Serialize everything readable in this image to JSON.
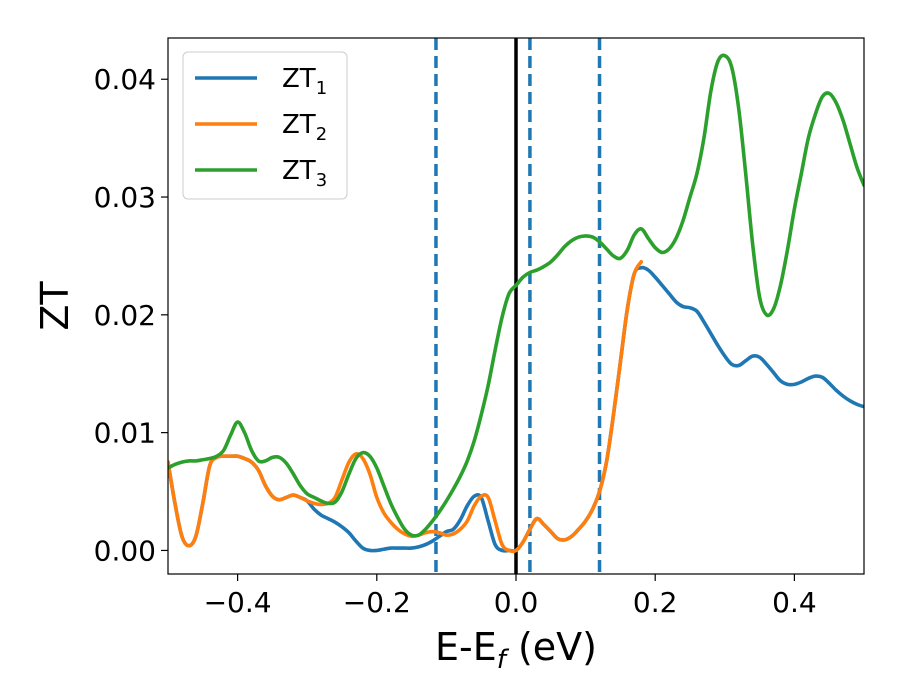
{
  "chart_data": {
    "type": "line",
    "xlabel_main": "E-E",
    "xlabel_sub": "f",
    "xlabel_unit": " (eV)",
    "ylabel": "ZT",
    "xlim": [
      -0.5,
      0.5
    ],
    "ylim": [
      -0.002,
      0.0435
    ],
    "xticks": [
      -0.4,
      -0.2,
      0.0,
      0.2,
      0.4
    ],
    "xtick_labels": [
      "−0.4",
      "−0.2",
      "0.0",
      "0.2",
      "0.4"
    ],
    "yticks": [
      0.0,
      0.01,
      0.02,
      0.03,
      0.04
    ],
    "ytick_labels": [
      "0.00",
      "0.01",
      "0.02",
      "0.03",
      "0.04"
    ],
    "grid": false,
    "legend_position": "top-left",
    "vertical_lines": [
      {
        "x": 0.0,
        "style": "solid",
        "color": "#000000"
      },
      {
        "x": -0.115,
        "style": "dashed",
        "color": "#1f77b4"
      },
      {
        "x": 0.02,
        "style": "dashed",
        "color": "#1f77b4"
      },
      {
        "x": 0.12,
        "style": "dashed",
        "color": "#1f77b4"
      }
    ],
    "series": [
      {
        "name": "ZT",
        "subscript": "1",
        "color": "#1f77b4",
        "x": [
          -0.5,
          -0.49,
          -0.48,
          -0.47,
          -0.46,
          -0.45,
          -0.44,
          -0.43,
          -0.42,
          -0.41,
          -0.4,
          -0.39,
          -0.38,
          -0.37,
          -0.36,
          -0.35,
          -0.34,
          -0.33,
          -0.32,
          -0.31,
          -0.3,
          -0.29,
          -0.28,
          -0.27,
          -0.26,
          -0.25,
          -0.24,
          -0.23,
          -0.22,
          -0.21,
          -0.2,
          -0.19,
          -0.18,
          -0.17,
          -0.16,
          -0.15,
          -0.14,
          -0.13,
          -0.12,
          -0.11,
          -0.1,
          -0.09,
          -0.08,
          -0.07,
          -0.06,
          -0.05,
          -0.04,
          -0.03,
          -0.02,
          -0.01,
          0.0,
          0.01,
          0.02,
          0.03,
          0.04,
          0.05,
          0.06,
          0.07,
          0.08,
          0.09,
          0.1,
          0.11,
          0.12,
          0.13,
          0.14,
          0.15,
          0.16,
          0.17,
          0.18,
          0.19,
          0.2,
          0.21,
          0.22,
          0.23,
          0.24,
          0.25,
          0.26,
          0.27,
          0.28,
          0.29,
          0.3,
          0.31,
          0.32,
          0.33,
          0.34,
          0.35,
          0.36,
          0.37,
          0.38,
          0.39,
          0.4,
          0.41,
          0.42,
          0.43,
          0.44,
          0.45,
          0.46,
          0.47,
          0.48,
          0.49,
          0.5
        ],
        "y": [
          0.0075,
          0.004,
          0.0012,
          0.0004,
          0.0012,
          0.004,
          0.0072,
          0.0079,
          0.008,
          0.008,
          0.008,
          0.0078,
          0.0075,
          0.0068,
          0.0055,
          0.0046,
          0.0043,
          0.0045,
          0.0047,
          0.0045,
          0.0042,
          0.0035,
          0.003,
          0.0027,
          0.0024,
          0.002,
          0.0015,
          0.0008,
          0.0002,
          0.0,
          0.0,
          0.0001,
          0.0002,
          0.0002,
          0.0002,
          0.0002,
          0.0003,
          0.0005,
          0.0008,
          0.0012,
          0.0016,
          0.0018,
          0.0026,
          0.0038,
          0.0046,
          0.0045,
          0.0025,
          0.0005,
          0.0,
          0.0,
          0.0,
          0.0007,
          0.0018,
          0.0027,
          0.0022,
          0.0016,
          0.001,
          0.0009,
          0.0012,
          0.0018,
          0.0025,
          0.0035,
          0.005,
          0.0075,
          0.0115,
          0.016,
          0.0205,
          0.0235,
          0.024,
          0.0238,
          0.0232,
          0.0225,
          0.0218,
          0.0211,
          0.0207,
          0.0206,
          0.0203,
          0.0194,
          0.0184,
          0.0174,
          0.0165,
          0.0158,
          0.0157,
          0.0161,
          0.0165,
          0.0164,
          0.0158,
          0.0151,
          0.0144,
          0.0141,
          0.0141,
          0.0143,
          0.0146,
          0.0148,
          0.0147,
          0.0142,
          0.0136,
          0.0131,
          0.0127,
          0.0124,
          0.0122
        ]
      },
      {
        "name": "ZT",
        "subscript": "2",
        "color": "#ff7f0e",
        "x": [
          -0.5,
          -0.49,
          -0.48,
          -0.47,
          -0.46,
          -0.45,
          -0.44,
          -0.43,
          -0.42,
          -0.41,
          -0.4,
          -0.39,
          -0.38,
          -0.37,
          -0.36,
          -0.35,
          -0.34,
          -0.33,
          -0.32,
          -0.31,
          -0.3,
          -0.29,
          -0.28,
          -0.27,
          -0.26,
          -0.25,
          -0.24,
          -0.23,
          -0.22,
          -0.21,
          -0.2,
          -0.19,
          -0.18,
          -0.17,
          -0.16,
          -0.15,
          -0.14,
          -0.13,
          -0.12,
          -0.11,
          -0.1,
          -0.09,
          -0.08,
          -0.07,
          -0.06,
          -0.05,
          -0.04,
          -0.03,
          -0.02,
          -0.01,
          0.0,
          0.01,
          0.02,
          0.03,
          0.04,
          0.05,
          0.06,
          0.07,
          0.08,
          0.09,
          0.1,
          0.11,
          0.12,
          0.13,
          0.14,
          0.15,
          0.16,
          0.17,
          0.18
        ],
        "y": [
          0.0075,
          0.004,
          0.0012,
          0.0004,
          0.0012,
          0.004,
          0.0072,
          0.0079,
          0.008,
          0.008,
          0.008,
          0.0078,
          0.0075,
          0.0068,
          0.0055,
          0.0046,
          0.0043,
          0.0045,
          0.0047,
          0.0045,
          0.0042,
          0.004,
          0.0039,
          0.004,
          0.0045,
          0.006,
          0.0075,
          0.0082,
          0.0078,
          0.0065,
          0.0045,
          0.0032,
          0.0024,
          0.0018,
          0.0014,
          0.0012,
          0.0013,
          0.0015,
          0.0016,
          0.0015,
          0.0013,
          0.0014,
          0.0018,
          0.0025,
          0.0038,
          0.0046,
          0.0045,
          0.0025,
          0.0005,
          0.0,
          0.0,
          0.0007,
          0.0018,
          0.0027,
          0.0022,
          0.0016,
          0.001,
          0.0009,
          0.0012,
          0.0018,
          0.0025,
          0.0035,
          0.005,
          0.0075,
          0.0115,
          0.016,
          0.0205,
          0.0235,
          0.0245
        ]
      },
      {
        "name": "ZT",
        "subscript": "3",
        "color": "#2ca02c",
        "x": [
          -0.5,
          -0.49,
          -0.48,
          -0.47,
          -0.46,
          -0.45,
          -0.44,
          -0.43,
          -0.42,
          -0.41,
          -0.4,
          -0.39,
          -0.38,
          -0.37,
          -0.36,
          -0.35,
          -0.34,
          -0.33,
          -0.32,
          -0.31,
          -0.3,
          -0.29,
          -0.28,
          -0.27,
          -0.26,
          -0.25,
          -0.24,
          -0.23,
          -0.22,
          -0.21,
          -0.2,
          -0.19,
          -0.18,
          -0.17,
          -0.16,
          -0.15,
          -0.14,
          -0.13,
          -0.12,
          -0.11,
          -0.1,
          -0.09,
          -0.08,
          -0.07,
          -0.06,
          -0.05,
          -0.04,
          -0.03,
          -0.02,
          -0.01,
          0.0,
          0.01,
          0.02,
          0.03,
          0.04,
          0.05,
          0.06,
          0.07,
          0.08,
          0.09,
          0.1,
          0.11,
          0.12,
          0.13,
          0.14,
          0.15,
          0.16,
          0.17,
          0.18,
          0.19,
          0.2,
          0.21,
          0.22,
          0.23,
          0.24,
          0.25,
          0.26,
          0.27,
          0.28,
          0.29,
          0.3,
          0.31,
          0.32,
          0.33,
          0.34,
          0.35,
          0.36,
          0.37,
          0.38,
          0.39,
          0.4,
          0.41,
          0.42,
          0.43,
          0.44,
          0.45,
          0.46,
          0.47,
          0.48,
          0.49,
          0.5
        ],
        "y": [
          0.007,
          0.0073,
          0.0075,
          0.0076,
          0.0076,
          0.0077,
          0.0078,
          0.008,
          0.0085,
          0.0098,
          0.0109,
          0.01,
          0.0085,
          0.0076,
          0.0076,
          0.0079,
          0.0079,
          0.0074,
          0.0065,
          0.0055,
          0.0048,
          0.0045,
          0.0042,
          0.004,
          0.0041,
          0.005,
          0.0065,
          0.0078,
          0.0083,
          0.008,
          0.007,
          0.0055,
          0.004,
          0.0028,
          0.0018,
          0.0013,
          0.0013,
          0.0018,
          0.0025,
          0.0033,
          0.0042,
          0.0052,
          0.0063,
          0.0076,
          0.0093,
          0.0115,
          0.014,
          0.017,
          0.0198,
          0.0218,
          0.0225,
          0.0232,
          0.0236,
          0.0238,
          0.0241,
          0.0245,
          0.0251,
          0.0258,
          0.0263,
          0.0266,
          0.0267,
          0.0266,
          0.0262,
          0.0256,
          0.025,
          0.0248,
          0.0255,
          0.0268,
          0.0273,
          0.0265,
          0.0257,
          0.0253,
          0.0256,
          0.0265,
          0.028,
          0.03,
          0.032,
          0.035,
          0.039,
          0.0415,
          0.042,
          0.041,
          0.0375,
          0.032,
          0.026,
          0.0215,
          0.02,
          0.0205,
          0.0225,
          0.0255,
          0.029,
          0.032,
          0.035,
          0.037,
          0.0385,
          0.0388,
          0.038,
          0.0365,
          0.0345,
          0.0325,
          0.031
        ]
      }
    ]
  }
}
